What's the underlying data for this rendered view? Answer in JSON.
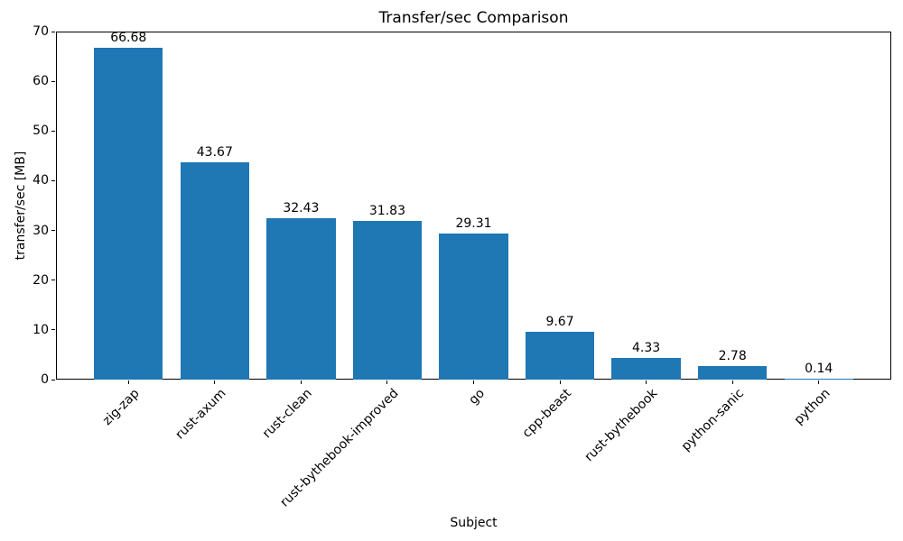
{
  "figure": {
    "background": "#ffffff"
  },
  "chart_data": {
    "type": "bar",
    "title": "Transfer/sec Comparison",
    "xlabel": "Subject",
    "ylabel": "transfer/sec [MB]",
    "categories": [
      "zig-zap",
      "rust-axum",
      "rust-clean",
      "rust-bythebook-improved",
      "go",
      "cpp-beast",
      "rust-bythebook",
      "python-sanic",
      "python"
    ],
    "values": [
      66.68,
      43.67,
      32.43,
      31.83,
      29.31,
      9.67,
      4.33,
      2.78,
      0.14
    ],
    "value_labels": [
      "66.68",
      "43.67",
      "32.43",
      "31.83",
      "29.31",
      "9.67",
      "4.33",
      "2.78",
      "0.14"
    ],
    "ylim": [
      0,
      70
    ],
    "yticks": [
      0,
      10,
      20,
      30,
      40,
      50,
      60,
      70
    ],
    "bar_color": "#1f77b4",
    "text_color": "#000000",
    "grid": false,
    "legend": null,
    "x_tick_rotation_deg": 45,
    "bar_width_fraction": 0.8
  }
}
